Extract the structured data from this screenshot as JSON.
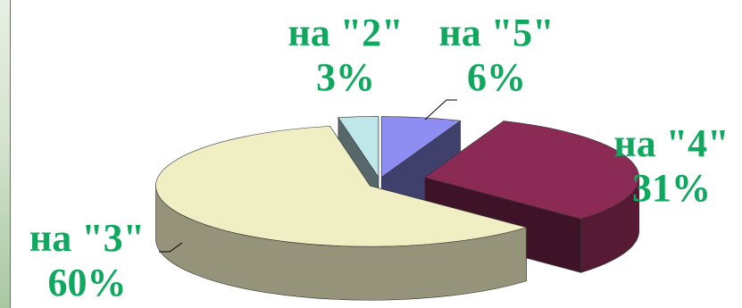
{
  "chart_data": {
    "type": "pie",
    "style": "3d-exploded",
    "slices": [
      {
        "label": "на \"2\"",
        "value": 3,
        "value_label": "3%",
        "color": "#bfe7ea"
      },
      {
        "label": "на \"5\"",
        "value": 6,
        "value_label": "6%",
        "color": "#8e8ef2"
      },
      {
        "label": "на \"4\"",
        "value": 31,
        "value_label": "31%",
        "color": "#8c2a56"
      },
      {
        "label": "на \"3\"",
        "value": 60,
        "value_label": "60%",
        "color": "#f0efc4"
      }
    ],
    "label_color": "#0fa85e"
  }
}
